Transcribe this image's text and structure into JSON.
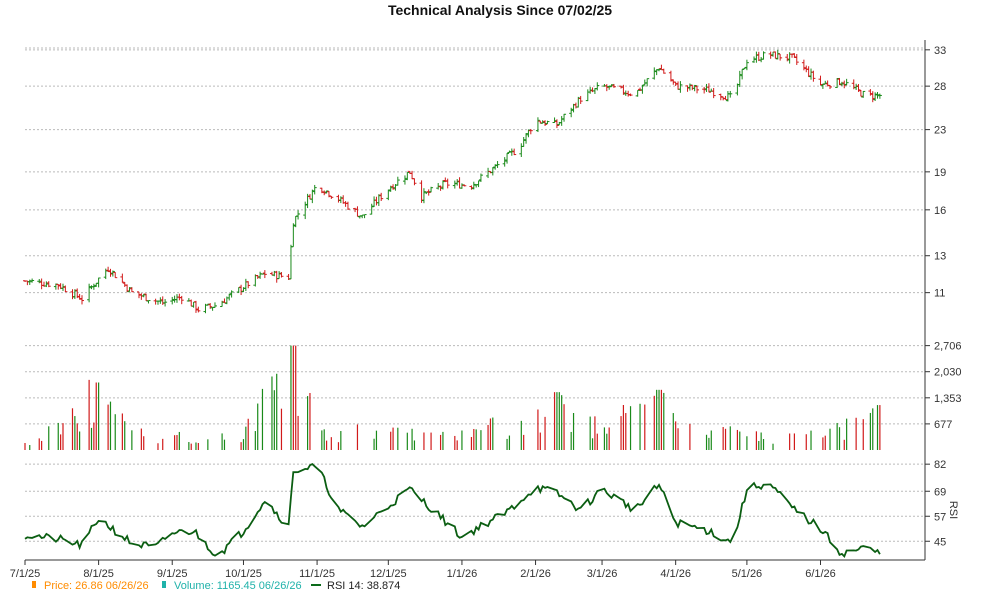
{
  "chart_data": {
    "type": "ohlc",
    "title": "Technical Analysis Since 07/02/25",
    "x_dates": [
      "7/1/25",
      "8/1/25",
      "9/1/25",
      "10/1/25",
      "11/1/25",
      "12/1/25",
      "1/1/26",
      "2/1/26",
      "3/1/26",
      "4/1/26",
      "5/1/26",
      "6/1/26"
    ],
    "price_axis": {
      "ticks": [
        "11",
        "13",
        "16",
        "19",
        "23",
        "28",
        "33"
      ],
      "scale": "log"
    },
    "volume_axis": {
      "ticks": [
        "677",
        "1,353",
        "2,030",
        "2,706"
      ]
    },
    "rsi_axis": {
      "ticks": [
        "45",
        "57",
        "69",
        "82"
      ],
      "label": "RSI"
    },
    "price_series": [
      [
        "2025-07-01",
        11.6
      ],
      [
        "2025-07-15",
        11.4
      ],
      [
        "2025-07-25",
        10.7
      ],
      [
        "2025-08-05",
        12.3
      ],
      [
        "2025-08-15",
        11.0
      ],
      [
        "2025-08-28",
        10.5
      ],
      [
        "2025-09-05",
        10.8
      ],
      [
        "2025-09-12",
        10.2
      ],
      [
        "2025-09-20",
        10.4
      ],
      [
        "2025-10-01",
        11.3
      ],
      [
        "2025-10-10",
        12.0
      ],
      [
        "2025-10-20",
        11.8
      ],
      [
        "2025-10-22",
        15.2
      ],
      [
        "2025-11-01",
        17.9
      ],
      [
        "2025-11-10",
        16.8
      ],
      [
        "2025-11-20",
        15.5
      ],
      [
        "2025-12-01",
        17.6
      ],
      [
        "2025-12-10",
        19.0
      ],
      [
        "2025-12-15",
        17.0
      ],
      [
        "2025-12-25",
        18.0
      ],
      [
        "2026-01-05",
        17.9
      ],
      [
        "2026-01-15",
        19.4
      ],
      [
        "2026-01-25",
        21.2
      ],
      [
        "2026-02-01",
        24.0
      ],
      [
        "2026-02-10",
        23.5
      ],
      [
        "2026-02-20",
        26.5
      ],
      [
        "2026-03-01",
        28.0
      ],
      [
        "2026-03-15",
        27.0
      ],
      [
        "2026-03-25",
        30.5
      ],
      [
        "2026-04-01",
        28.0
      ],
      [
        "2026-04-15",
        27.5
      ],
      [
        "2026-04-25",
        26.5
      ],
      [
        "2026-05-01",
        31.5
      ],
      [
        "2026-05-10",
        32.3
      ],
      [
        "2026-05-20",
        31.8
      ],
      [
        "2026-06-01",
        28.2
      ],
      [
        "2026-06-10",
        28.6
      ],
      [
        "2026-06-20",
        26.8
      ],
      [
        "2026-06-26",
        26.86
      ]
    ],
    "volume_series": [
      [
        "2025-07-01",
        180
      ],
      [
        "2025-08-01",
        1750
      ],
      [
        "2025-08-15",
        520
      ],
      [
        "2025-09-01",
        380
      ],
      [
        "2025-10-01",
        450
      ],
      [
        "2025-10-22",
        2706
      ],
      [
        "2025-11-01",
        620
      ],
      [
        "2025-12-01",
        470
      ],
      [
        "2026-01-01",
        420
      ],
      [
        "2026-02-01",
        1050
      ],
      [
        "2026-02-10",
        1500
      ],
      [
        "2026-03-01",
        620
      ],
      [
        "2026-03-25",
        1560
      ],
      [
        "2026-04-01",
        640
      ],
      [
        "2026-05-01",
        450
      ],
      [
        "2026-06-01",
        480
      ],
      [
        "2026-06-26",
        1165
      ]
    ],
    "rsi_series": [
      [
        "2025-07-01",
        48
      ],
      [
        "2025-07-15",
        46
      ],
      [
        "2025-07-25",
        43
      ],
      [
        "2025-08-01",
        56
      ],
      [
        "2025-08-15",
        44
      ],
      [
        "2025-08-25",
        42
      ],
      [
        "2025-09-01",
        49
      ],
      [
        "2025-09-10",
        50
      ],
      [
        "2025-09-20",
        38
      ],
      [
        "2025-10-01",
        50
      ],
      [
        "2025-10-10",
        65
      ],
      [
        "2025-10-20",
        52
      ],
      [
        "2025-10-22",
        79
      ],
      [
        "2025-11-01",
        81
      ],
      [
        "2025-11-10",
        60
      ],
      [
        "2025-11-20",
        52
      ],
      [
        "2025-12-01",
        62
      ],
      [
        "2025-12-10",
        70
      ],
      [
        "2025-12-20",
        60
      ],
      [
        "2026-01-01",
        47
      ],
      [
        "2026-01-10",
        53
      ],
      [
        "2026-01-20",
        59
      ],
      [
        "2026-02-01",
        71
      ],
      [
        "2026-02-10",
        68
      ],
      [
        "2026-02-20",
        60
      ],
      [
        "2026-03-01",
        70
      ],
      [
        "2026-03-15",
        60
      ],
      [
        "2026-03-25",
        72
      ],
      [
        "2026-04-01",
        54
      ],
      [
        "2026-04-15",
        50
      ],
      [
        "2026-04-25",
        44
      ],
      [
        "2026-05-01",
        70
      ],
      [
        "2026-05-10",
        73
      ],
      [
        "2026-05-20",
        61
      ],
      [
        "2026-06-01",
        51
      ],
      [
        "2026-06-10",
        39
      ],
      [
        "2026-06-20",
        42
      ],
      [
        "2026-06-26",
        38.874
      ]
    ],
    "legend": [
      {
        "label": "Price: 26.86",
        "date": "06/26/26",
        "color": "#ff8c00"
      },
      {
        "label": "Volume: 1165.45",
        "date": "06/26/26",
        "color": "#20b2aa"
      },
      {
        "label": "RSI 14: 38.874",
        "date": "",
        "color": "#0b6b1a"
      }
    ]
  }
}
